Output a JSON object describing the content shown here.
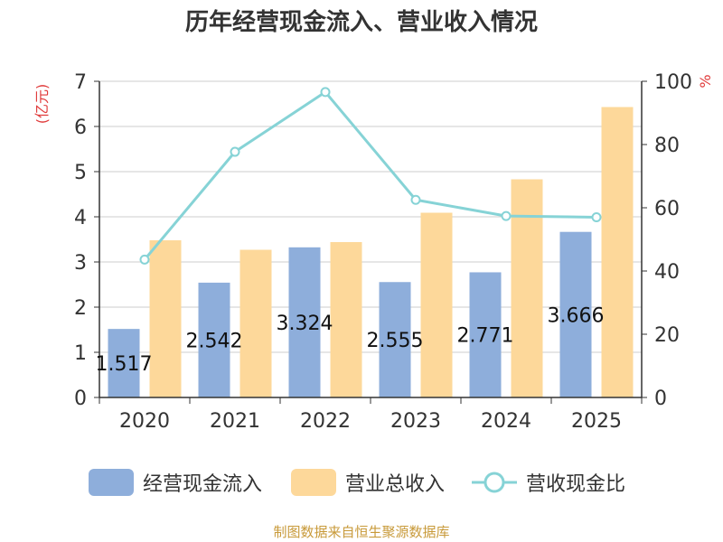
{
  "chart_data": {
    "type": "bar",
    "title": "历年经营现金流入、营业收入情况",
    "categories": [
      "2020",
      "2021",
      "2022",
      "2023",
      "2024",
      "2025"
    ],
    "left_unit": "(亿元)",
    "right_unit": "%",
    "ylim_left": [
      0,
      7
    ],
    "ylim_right": [
      0,
      100
    ],
    "left_ticks": [
      "0",
      "1",
      "2",
      "3",
      "4",
      "5",
      "6",
      "7"
    ],
    "right_ticks": [
      "0",
      "20",
      "40",
      "60",
      "80",
      "100"
    ],
    "grid": true,
    "legend_position": "bottom",
    "series": [
      {
        "name": "经营现金流入",
        "type": "bar",
        "axis": "left",
        "color": "#8eaedb",
        "values": [
          1.517,
          2.542,
          3.324,
          2.555,
          2.771,
          3.666
        ],
        "labels": [
          "1.517",
          "2.542",
          "3.324",
          "2.555",
          "2.771",
          "3.666"
        ]
      },
      {
        "name": "营业总收入",
        "type": "bar",
        "axis": "left",
        "color": "#fdd89a",
        "values": [
          3.48,
          3.27,
          3.44,
          4.09,
          4.83,
          6.43
        ]
      },
      {
        "name": "营收现金比",
        "type": "line",
        "axis": "right",
        "color": "#86d3d6",
        "values": [
          43.6,
          77.7,
          96.6,
          62.5,
          57.4,
          57.0
        ]
      }
    ]
  },
  "source_text": "制图数据来自恒生聚源数据库"
}
